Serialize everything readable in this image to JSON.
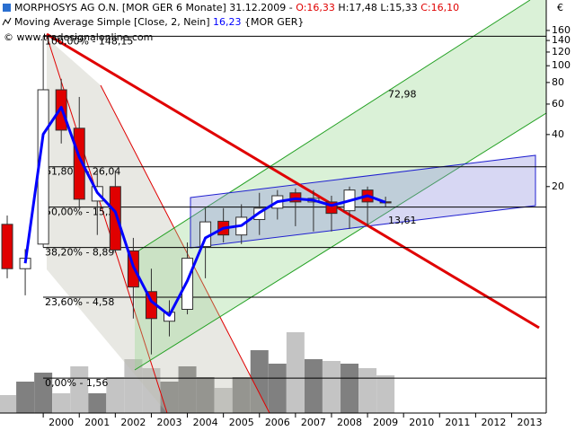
{
  "chart_data": {
    "type": "candlestick",
    "title_parts": [
      {
        "text": "MORPHOSYS AG O.N. [MOR GER  6 Monate] 31.12.2009 - ",
        "color": "#000000"
      },
      {
        "text": "O:16,33",
        "color": "#e00000"
      },
      {
        "text": " H:17,48 L:15,33 ",
        "color": "#000000"
      },
      {
        "text": "C:16,10",
        "color": "#e00000"
      }
    ],
    "indicator_parts": [
      {
        "text": "Moving Average Simple [Close, 2, Nein] ",
        "color": "#000000"
      },
      {
        "text": "16,23",
        "color": "#0000ff"
      },
      {
        "text": " {MOR GER}",
        "color": "#000000"
      }
    ],
    "copyright": "© www.tradesignalonline.com",
    "currency": "€",
    "x": [
      1999,
      1999.5,
      2000,
      2000.5,
      2001,
      2001.5,
      2002,
      2002.5,
      2003,
      2003.5,
      2004,
      2004.5,
      2005,
      2005.5,
      2006,
      2006.5,
      2007,
      2007.5,
      2008,
      2008.5,
      2009,
      2009.5
    ],
    "open": [
      12.1,
      6.7,
      9.3,
      72.6,
      43.5,
      16.5,
      20,
      8.5,
      4.94,
      3.33,
      3.9,
      9.0,
      12.6,
      10.5,
      12.9,
      15,
      18.4,
      16.3,
      16.3,
      14.5,
      19.1,
      16.33
    ],
    "high": [
      13.6,
      8.7,
      148.15,
      84,
      66,
      24.8,
      24.8,
      10.1,
      6.7,
      4.4,
      9.5,
      15,
      15,
      15.8,
      18.4,
      19.1,
      19.5,
      19.1,
      17.7,
      20,
      20,
      17.48
    ],
    "low": [
      5.9,
      4.7,
      8.9,
      35.5,
      15,
      10.5,
      8.3,
      3.45,
      2.14,
      2.72,
      3.65,
      5.9,
      9.5,
      9.3,
      10.5,
      12.9,
      11.8,
      11.0,
      11.0,
      11.4,
      11.8,
      15.33
    ],
    "close": [
      6.7,
      7.7,
      72.6,
      42.4,
      16.9,
      20,
      8.6,
      5.25,
      3.45,
      3.75,
      7.7,
      12.5,
      10.5,
      13.3,
      15,
      17.7,
      16.3,
      17.1,
      14,
      19.1,
      16.3,
      16.1
    ],
    "up_color": "#ffffff",
    "down_color": "#e00000",
    "ma": {
      "color": "#0000ff",
      "values": [
        null,
        7.2,
        40.15,
        57.5,
        29.65,
        18.45,
        14.3,
        6.9,
        4.35,
        3.6,
        5.7,
        10.1,
        11.5,
        11.9,
        14.15,
        16.35,
        17,
        16.7,
        15.55,
        16.55,
        17.7,
        16.23
      ]
    },
    "volume": [
      20,
      35,
      45,
      22,
      52,
      22,
      40,
      60,
      50,
      35,
      52,
      40,
      28,
      40,
      70,
      55,
      90,
      60,
      58,
      55,
      50,
      42
    ],
    "volume_ylim": [
      0,
      100
    ],
    "xlim": [
      1998.8,
      2013.96
    ],
    "xticks": [
      2000,
      2001,
      2002,
      2003,
      2004,
      2005,
      2006,
      2007,
      2008,
      2009,
      2010,
      2011,
      2012,
      2013
    ],
    "ylim": [
      0.98,
      240
    ],
    "yticks": [
      160,
      140,
      120,
      100,
      80,
      60,
      40,
      20
    ],
    "log": true,
    "fib": [
      {
        "label": "100,00% - 148,15",
        "value": 148.15
      },
      {
        "label": "61,80% - 26,04",
        "value": 26.04
      },
      {
        "label": "50,00% - 15,22",
        "value": 15.22
      },
      {
        "label": "38,20% - 8,89",
        "value": 8.89
      },
      {
        "label": "23,60% - 4,58",
        "value": 4.58
      },
      {
        "label": "0,00% - 1,56",
        "value": 1.56
      }
    ],
    "annotations": [
      {
        "value": 72.98,
        "label": "72,98",
        "color": "#008000"
      },
      {
        "value": 13.61,
        "label": "13,61",
        "color": "#008000"
      }
    ]
  }
}
